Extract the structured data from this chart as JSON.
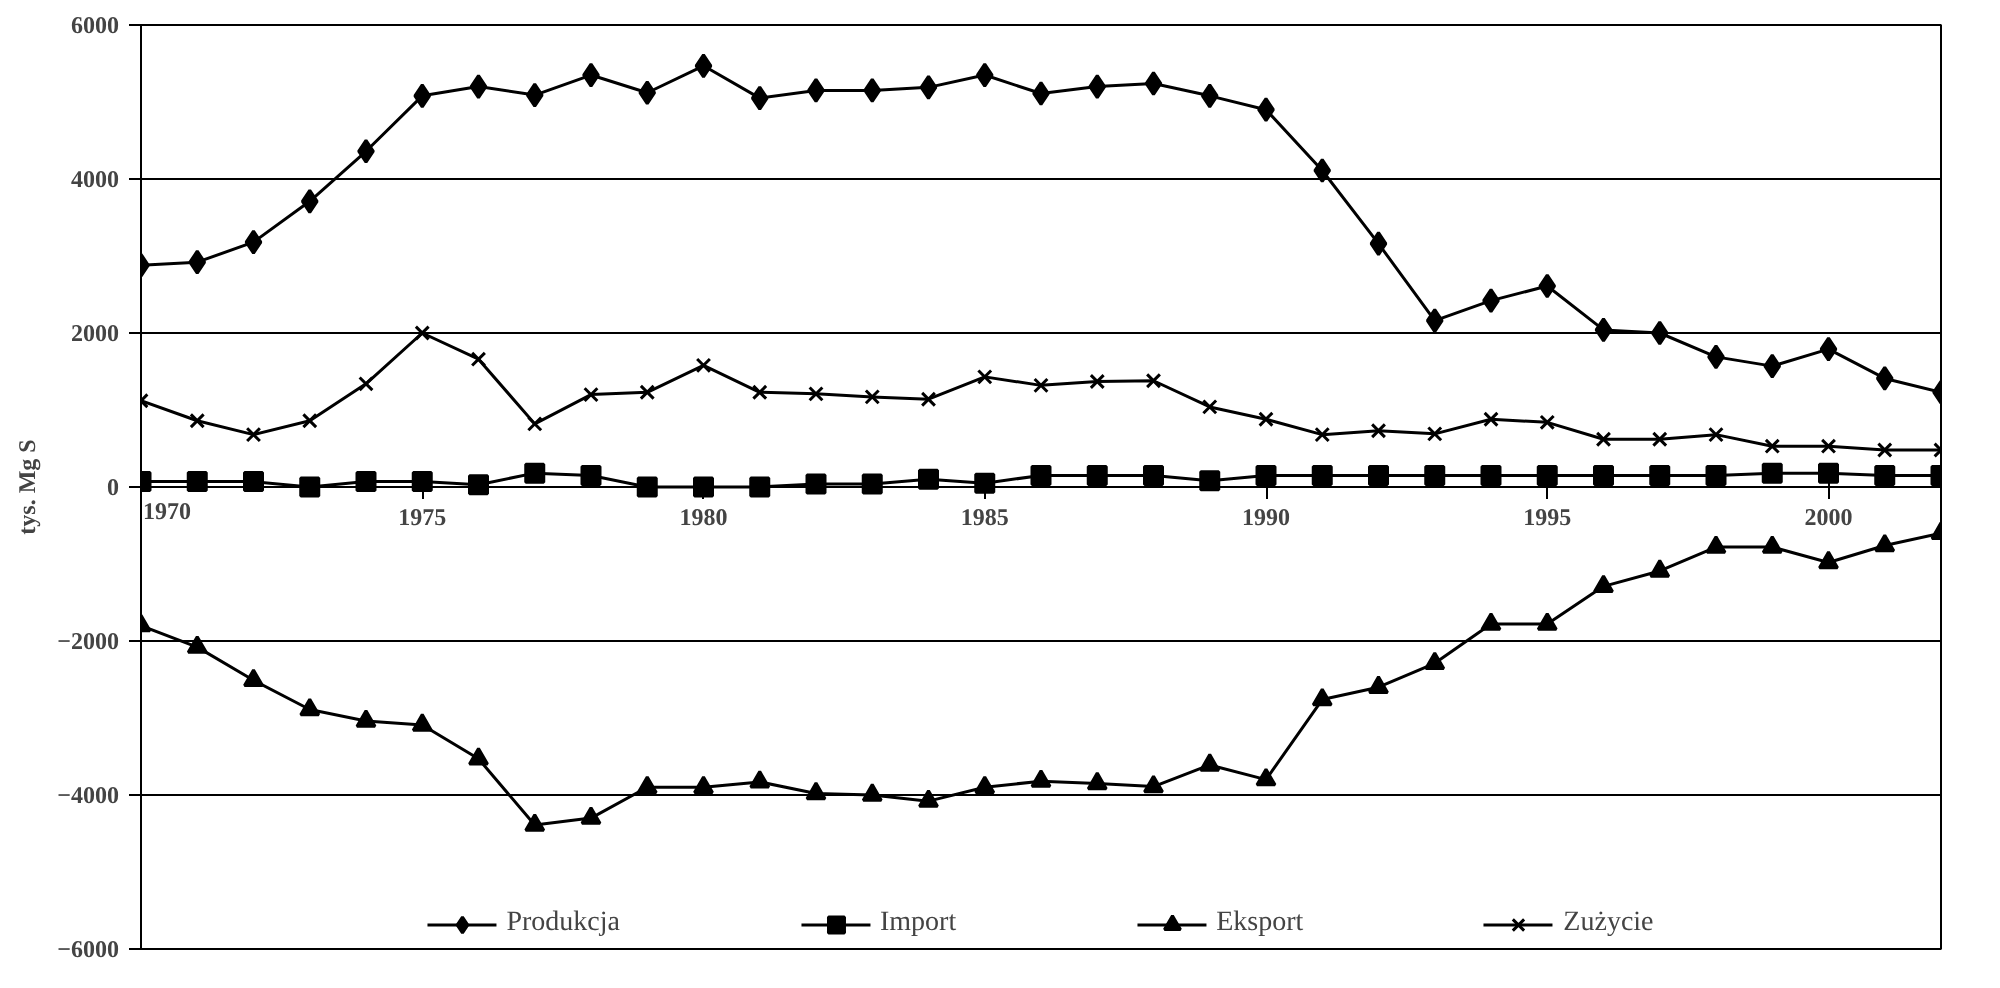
{
  "chart_data": {
    "type": "line",
    "ylabel": "tys. Mg S",
    "x": [
      1970,
      1971,
      1972,
      1973,
      1974,
      1975,
      1976,
      1977,
      1978,
      1979,
      1980,
      1981,
      1982,
      1983,
      1984,
      1985,
      1986,
      1987,
      1988,
      1989,
      1990,
      1991,
      1992,
      1993,
      1994,
      1995,
      1996,
      1997,
      1998,
      1999,
      2000,
      2001,
      2002
    ],
    "xlim": [
      1970,
      2002
    ],
    "xticks": [
      1970,
      1975,
      1980,
      1985,
      1990,
      1995,
      2000
    ],
    "ylim": [
      -6000,
      6000
    ],
    "yticks": [
      -6000,
      -4000,
      -2000,
      0,
      2000,
      4000,
      6000
    ],
    "grid": "y",
    "legend": "bottom",
    "line_style": "solid",
    "series": [
      {
        "name": "Produkcja",
        "color": "#000000",
        "marker": "diamond",
        "values": [
          2880,
          2920,
          3180,
          3710,
          4360,
          5080,
          5200,
          5090,
          5350,
          5120,
          5470,
          5050,
          5150,
          5150,
          5190,
          5350,
          5110,
          5200,
          5240,
          5080,
          4900,
          4110,
          3160,
          2160,
          2420,
          2610,
          2040,
          2000,
          1690,
          1570,
          1790,
          1410,
          1230
        ]
      },
      {
        "name": "Import",
        "color": "#000000",
        "marker": "square",
        "values": [
          70,
          70,
          70,
          0,
          70,
          70,
          30,
          180,
          150,
          0,
          0,
          0,
          40,
          40,
          100,
          50,
          150,
          150,
          150,
          80,
          150,
          150,
          150,
          150,
          150,
          150,
          150,
          150,
          150,
          180,
          180,
          150,
          150
        ]
      },
      {
        "name": "Eksport",
        "color": "#000000",
        "marker": "triangle",
        "values": [
          -1800,
          -2080,
          -2510,
          -2890,
          -3040,
          -3090,
          -3530,
          -4390,
          -4300,
          -3900,
          -3900,
          -3830,
          -3980,
          -4000,
          -4080,
          -3900,
          -3820,
          -3850,
          -3890,
          -3610,
          -3800,
          -2760,
          -2600,
          -2290,
          -1780,
          -1780,
          -1290,
          -1090,
          -780,
          -780,
          -980,
          -760,
          -600
        ]
      },
      {
        "name": "Zużycie",
        "color": "#000000",
        "marker": "cross",
        "values": [
          1120,
          860,
          680,
          860,
          1340,
          2000,
          1660,
          820,
          1200,
          1230,
          1580,
          1230,
          1210,
          1170,
          1140,
          1430,
          1320,
          1370,
          1380,
          1040,
          880,
          680,
          730,
          690,
          880,
          840,
          620,
          620,
          680,
          530,
          530,
          480,
          480
        ]
      }
    ]
  }
}
